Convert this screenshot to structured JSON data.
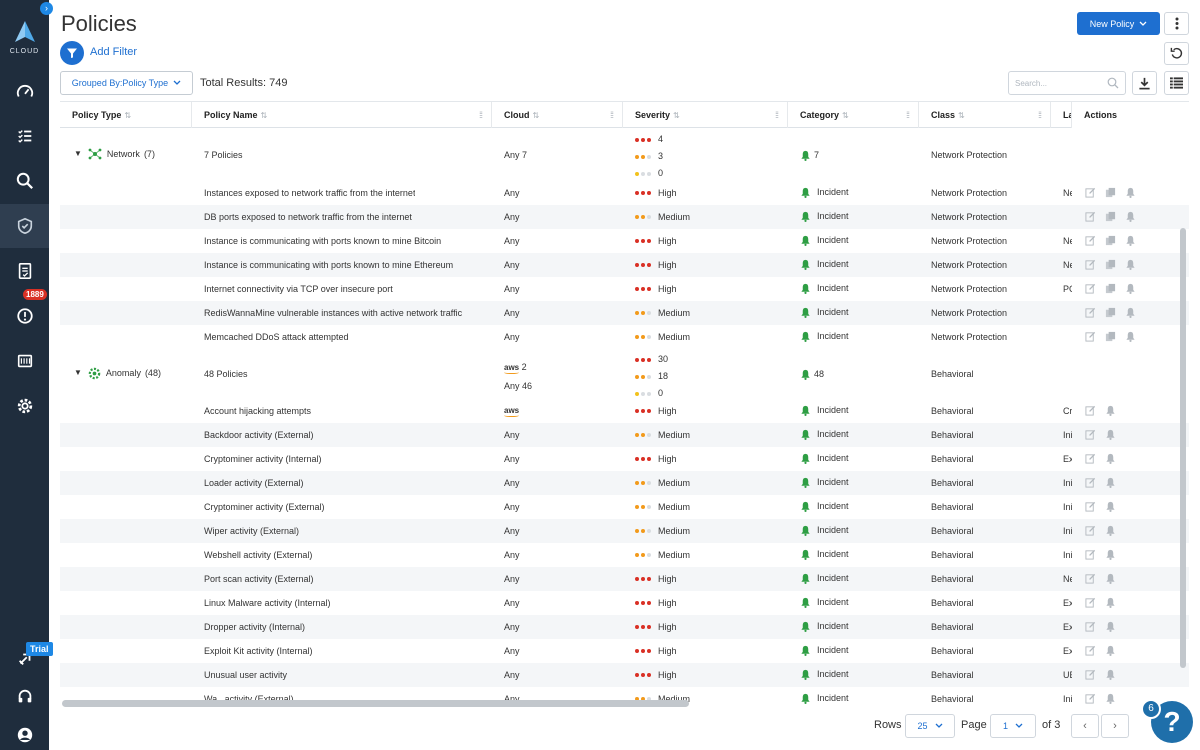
{
  "sidebar": {
    "logo_text": "CLOUD",
    "alerts_badge": "1889",
    "trial_badge": "Trial"
  },
  "header": {
    "title": "Policies",
    "new_policy_label": "New Policy",
    "add_filter_label": "Add Filter",
    "grouped_by_label": "Grouped By:Policy Type",
    "total_results": "Total Results: 749",
    "search_placeholder": "Search..."
  },
  "columns": {
    "policy_type": "Policy Type",
    "policy_name": "Policy Name",
    "cloud": "Cloud",
    "severity": "Severity",
    "category": "Category",
    "class": "Class",
    "labels": "La",
    "actions": "Actions"
  },
  "groups": {
    "network": {
      "label": "Network",
      "count": "(7)",
      "name": "7 Policies",
      "cloud": "Any  7",
      "sev_high": "4",
      "sev_medium": "3",
      "sev_low": "0",
      "category_count": "7",
      "class": "Network Protection"
    },
    "anomaly": {
      "label": "Anomaly",
      "count": "(48)",
      "name": "48 Policies",
      "cloud_aws_count": "2",
      "cloud_any": "Any  46",
      "sev_high": "30",
      "sev_medium": "18",
      "sev_low": "0",
      "category_count": "48",
      "class": "Behavioral"
    }
  },
  "rows": [
    {
      "name": "Instances exposed to network traffic from the internet",
      "cloud": "Any",
      "severity": "High",
      "category": "Incident",
      "class": "Network Protection",
      "label": "Ne"
    },
    {
      "name": "DB ports exposed to network traffic from the internet",
      "cloud": "Any",
      "severity": "Medium",
      "category": "Incident",
      "class": "Network Protection",
      "label": ""
    },
    {
      "name": "Instance is communicating with ports known to mine Bitcoin",
      "cloud": "Any",
      "severity": "High",
      "category": "Incident",
      "class": "Network Protection",
      "label": "Ne"
    },
    {
      "name": "Instance is communicating with ports known to mine Ethereum",
      "cloud": "Any",
      "severity": "High",
      "category": "Incident",
      "class": "Network Protection",
      "label": "Ne"
    },
    {
      "name": "Internet connectivity via TCP over insecure port",
      "cloud": "Any",
      "severity": "High",
      "category": "Incident",
      "class": "Network Protection",
      "label": "PC"
    },
    {
      "name": "RedisWannaMine vulnerable instances with active network traffic",
      "cloud": "Any",
      "severity": "Medium",
      "category": "Incident",
      "class": "Network Protection",
      "label": ""
    },
    {
      "name": "Memcached DDoS attack attempted",
      "cloud": "Any",
      "severity": "Medium",
      "category": "Incident",
      "class": "Network Protection",
      "label": ""
    },
    {
      "name": "Account hijacking attempts",
      "cloud": "aws",
      "severity": "High",
      "category": "Incident",
      "class": "Behavioral",
      "label": "Cr"
    },
    {
      "name": "Backdoor activity (External)",
      "cloud": "Any",
      "severity": "Medium",
      "category": "Incident",
      "class": "Behavioral",
      "label": "Ini"
    },
    {
      "name": "Cryptominer activity (Internal)",
      "cloud": "Any",
      "severity": "High",
      "category": "Incident",
      "class": "Behavioral",
      "label": "Ex"
    },
    {
      "name": "Loader activity (External)",
      "cloud": "Any",
      "severity": "Medium",
      "category": "Incident",
      "class": "Behavioral",
      "label": "Ini"
    },
    {
      "name": "Cryptominer activity (External)",
      "cloud": "Any",
      "severity": "Medium",
      "category": "Incident",
      "class": "Behavioral",
      "label": "Ini"
    },
    {
      "name": "Wiper activity (External)",
      "cloud": "Any",
      "severity": "Medium",
      "category": "Incident",
      "class": "Behavioral",
      "label": "Ini"
    },
    {
      "name": "Webshell activity (External)",
      "cloud": "Any",
      "severity": "Medium",
      "category": "Incident",
      "class": "Behavioral",
      "label": "Ini"
    },
    {
      "name": "Port scan activity (External)",
      "cloud": "Any",
      "severity": "High",
      "category": "Incident",
      "class": "Behavioral",
      "label": "Ne"
    },
    {
      "name": "Linux Malware activity (Internal)",
      "cloud": "Any",
      "severity": "High",
      "category": "Incident",
      "class": "Behavioral",
      "label": "Ex"
    },
    {
      "name": "Dropper activity (Internal)",
      "cloud": "Any",
      "severity": "High",
      "category": "Incident",
      "class": "Behavioral",
      "label": "Ex"
    },
    {
      "name": "Exploit Kit activity (Internal)",
      "cloud": "Any",
      "severity": "High",
      "category": "Incident",
      "class": "Behavioral",
      "label": "Ex"
    },
    {
      "name": "Unusual user activity",
      "cloud": "Any",
      "severity": "High",
      "category": "Incident",
      "class": "Behavioral",
      "label": "UE"
    },
    {
      "name": "Wa...activity (External)",
      "cloud": "Any",
      "severity": "Medium",
      "category": "Incident",
      "class": "Behavioral",
      "label": "Ini"
    }
  ],
  "pager": {
    "rows_label": "Rows",
    "rows_value": "25",
    "page_label": "Page",
    "page_value": "1",
    "of_label": "of 3",
    "prev": "‹",
    "next": "›"
  },
  "help": {
    "count": "6",
    "symbol": "?"
  },
  "colors": {
    "sidebar_bg": "#1f2d3d",
    "primary": "#1e6fd0",
    "high": "#d93025",
    "medium": "#f29a1b",
    "low": "#f2c21b",
    "incident_green": "#2e9e44"
  }
}
